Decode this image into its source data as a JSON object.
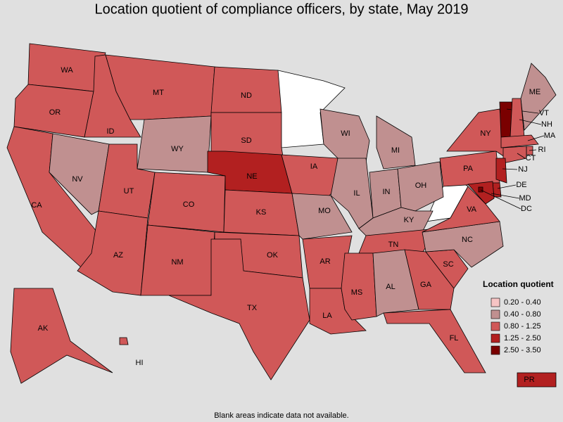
{
  "title": "Location quotient of compliance officers, by state, May 2019",
  "note": "Blank areas indicate data not available.",
  "legend": {
    "title": "Location quotient",
    "classes": [
      {
        "label": "0.20 - 0.40",
        "color": "#f6c4c4"
      },
      {
        "label": "0.40 - 0.80",
        "color": "#c09090"
      },
      {
        "label": "0.80 - 1.25",
        "color": "#d05858"
      },
      {
        "label": "1.25 - 2.50",
        "color": "#b22020"
      },
      {
        "label": "2.50 - 3.50",
        "color": "#7a0000"
      }
    ]
  },
  "states": [
    {
      "label": "WA",
      "class": 2
    },
    {
      "label": "OR",
      "class": 2
    },
    {
      "label": "CA",
      "class": 2
    },
    {
      "label": "NV",
      "class": 1
    },
    {
      "label": "ID",
      "class": 2
    },
    {
      "label": "MT",
      "class": 2
    },
    {
      "label": "WY",
      "class": 1
    },
    {
      "label": "UT",
      "class": 2
    },
    {
      "label": "CO",
      "class": 2
    },
    {
      "label": "AZ",
      "class": 2
    },
    {
      "label": "NM",
      "class": 2
    },
    {
      "label": "ND",
      "class": 2
    },
    {
      "label": "SD",
      "class": 2
    },
    {
      "label": "NE",
      "class": 3
    },
    {
      "label": "KS",
      "class": 2
    },
    {
      "label": "OK",
      "class": 2
    },
    {
      "label": "TX",
      "class": 2
    },
    {
      "label": "IA",
      "class": 2
    },
    {
      "label": "MO",
      "class": 1
    },
    {
      "label": "AR",
      "class": 2
    },
    {
      "label": "LA",
      "class": 2
    },
    {
      "label": "WI",
      "class": 1
    },
    {
      "label": "IL",
      "class": 1
    },
    {
      "label": "MI",
      "class": 1
    },
    {
      "label": "IN",
      "class": 1
    },
    {
      "label": "OH",
      "class": 1
    },
    {
      "label": "KY",
      "class": 1
    },
    {
      "label": "TN",
      "class": 2
    },
    {
      "label": "MS",
      "class": 2
    },
    {
      "label": "AL",
      "class": 1
    },
    {
      "label": "GA",
      "class": 2
    },
    {
      "label": "FL",
      "class": 2
    },
    {
      "label": "SC",
      "class": 2
    },
    {
      "label": "NC",
      "class": 1
    },
    {
      "label": "VA",
      "class": 2
    },
    {
      "label": "PA",
      "class": 2
    },
    {
      "label": "NY",
      "class": 2
    },
    {
      "label": "ME",
      "class": 1
    },
    {
      "label": "VT",
      "class": 4
    },
    {
      "label": "NH",
      "class": 2
    },
    {
      "label": "MA",
      "class": 2
    },
    {
      "label": "RI",
      "class": 2
    },
    {
      "label": "CT",
      "class": 2
    },
    {
      "label": "NJ",
      "class": 3
    },
    {
      "label": "DE",
      "class": 3
    },
    {
      "label": "MD",
      "class": 3
    },
    {
      "label": "DC",
      "class": 4
    },
    {
      "label": "AK",
      "class": 2
    },
    {
      "label": "HI",
      "class": 2
    },
    {
      "label": "PR",
      "class": 3
    }
  ]
}
